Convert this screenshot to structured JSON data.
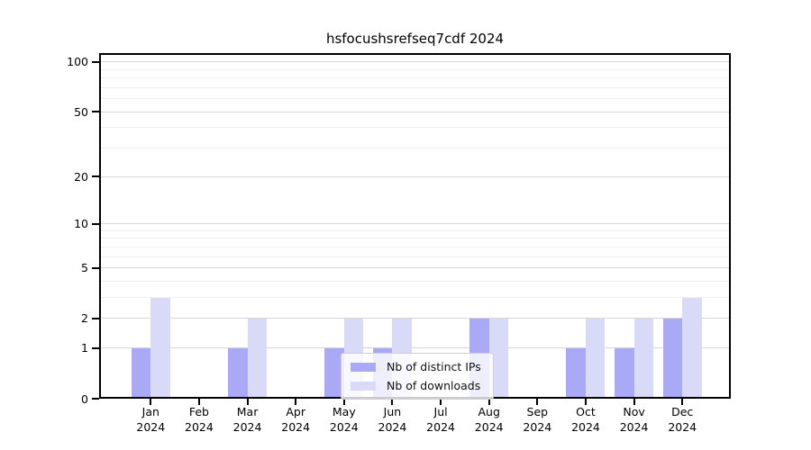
{
  "chart_data": {
    "type": "bar",
    "title": "hsfocushsrefseq7cdf 2024",
    "categories": [
      "Jan 2024",
      "Feb 2024",
      "Mar 2024",
      "Apr 2024",
      "May 2024",
      "Jun 2024",
      "Jul 2024",
      "Aug 2024",
      "Sep 2024",
      "Oct 2024",
      "Nov 2024",
      "Dec 2024"
    ],
    "series": [
      {
        "name": "Nb of distinct IPs",
        "color": "#a9a9f5",
        "values": [
          1,
          0,
          1,
          0,
          1,
          1,
          0,
          2,
          0,
          1,
          1,
          2
        ]
      },
      {
        "name": "Nb of downloads",
        "color": "#d9d9f8",
        "values": [
          3,
          0,
          2,
          0,
          2,
          2,
          0,
          2,
          0,
          2,
          2,
          3
        ]
      }
    ],
    "yscale": "log1p",
    "ylim": [
      0,
      113
    ],
    "yticks": [
      0,
      1,
      2,
      5,
      10,
      20,
      50,
      100
    ],
    "yminorticks": [
      3,
      4,
      6,
      7,
      8,
      9,
      30,
      40,
      60,
      70,
      80,
      90
    ],
    "xlabel": "",
    "ylabel": "",
    "grid": true,
    "legend_position": "lower center"
  }
}
